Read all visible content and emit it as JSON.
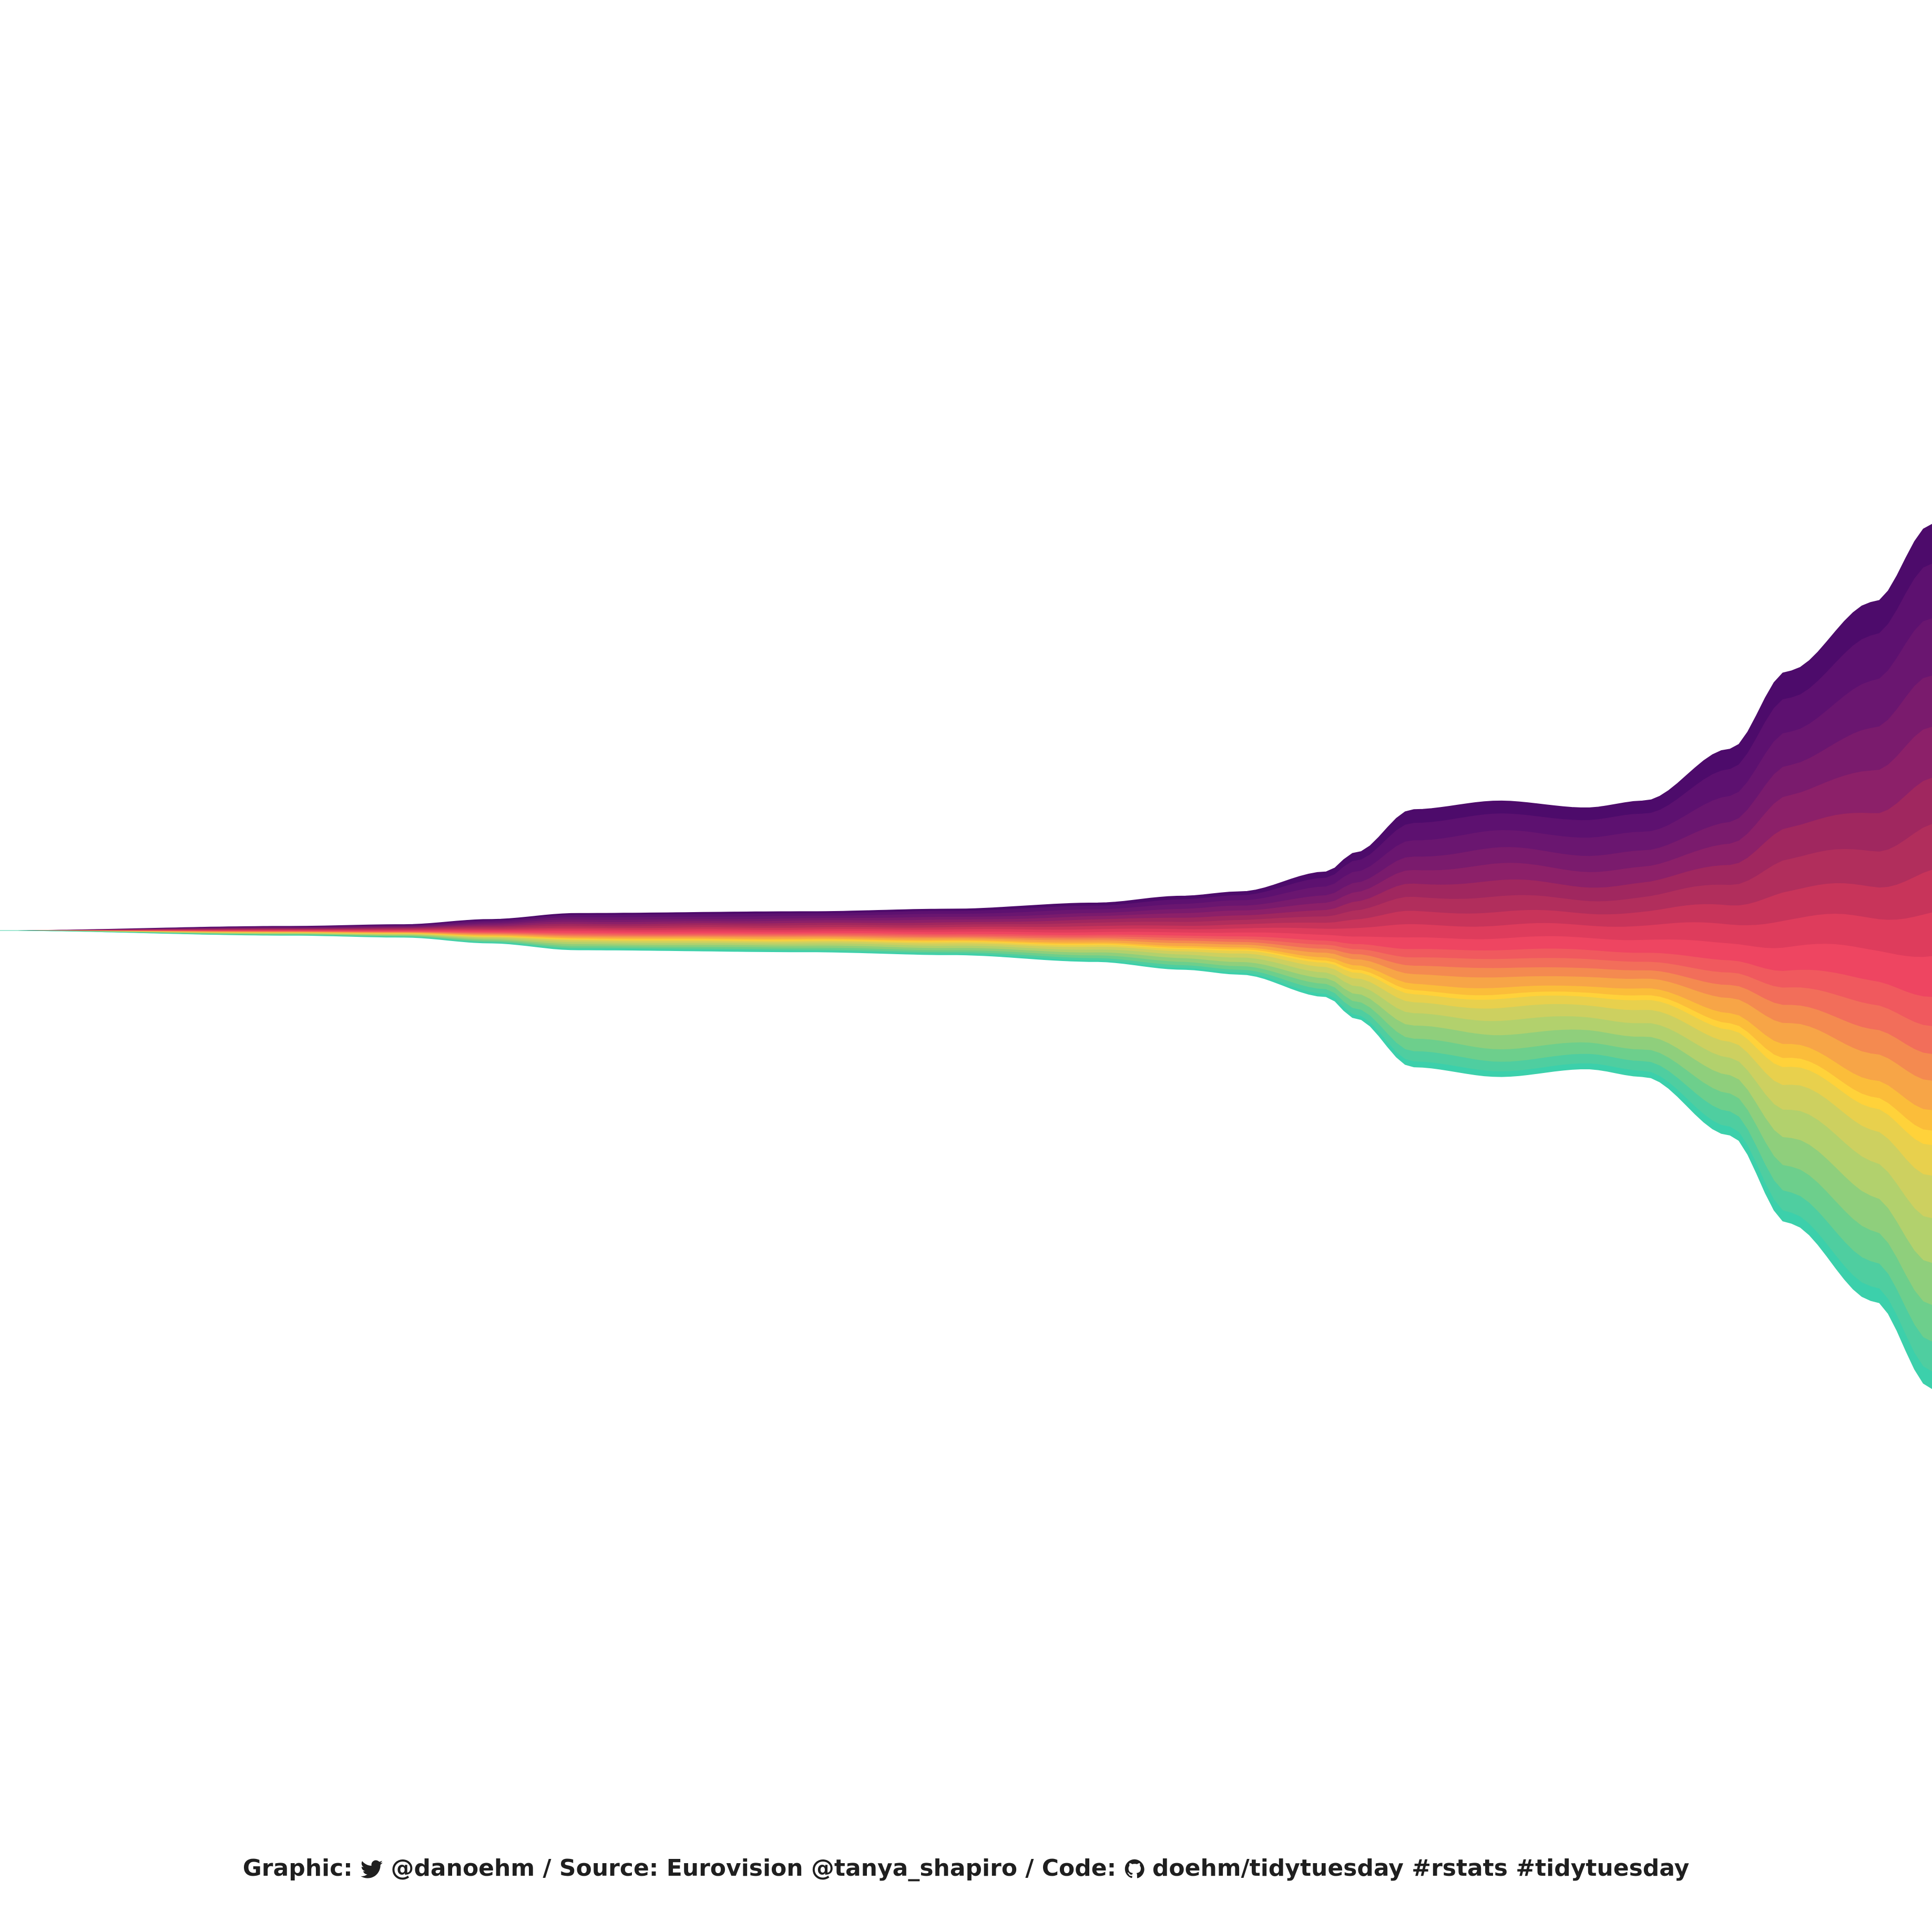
{
  "chart_data": {
    "type": "area",
    "subtype": "streamgraph",
    "title": "",
    "xlabel": "",
    "ylabel": "",
    "xlim": [
      0,
      67
    ],
    "grid": false,
    "legend": "none",
    "x_knots": [
      0,
      10,
      14,
      17,
      20,
      28,
      33,
      38,
      41,
      43,
      46,
      47,
      49,
      52,
      55,
      57,
      60,
      62,
      65,
      67
    ],
    "width_knots": [
      0,
      5,
      7,
      13,
      20,
      22,
      25,
      32,
      40,
      45,
      68,
      90,
      140,
      150,
      142,
      150,
      210,
      300,
      380,
      470
    ],
    "palette": [
      "#4d0b6b",
      "#5d1170",
      "#6a1670",
      "#7a1b6d",
      "#8c2069",
      "#a0275f",
      "#b12e5c",
      "#c8345a",
      "#de3c5c",
      "#ee4561",
      "#f0595e",
      "#f26e5a",
      "#f48a50",
      "#f7a547",
      "#fbbd3a",
      "#ffd23a",
      "#e8d04d",
      "#cdd060",
      "#b2d16d",
      "#8fcf7c",
      "#6dcf8c",
      "#4fcea0",
      "#3cd0ab"
    ],
    "weights": [
      1.2,
      1.6,
      1.6,
      1.4,
      1.4,
      1.3,
      1.3,
      1.2,
      1.2,
      1.1,
      0.8,
      0.8,
      0.8,
      0.9,
      0.6,
      0.4,
      0.8,
      1.1,
      1.2,
      1.2,
      1.1,
      0.9,
      0.5
    ]
  },
  "caption": {
    "graphic_label": "Graphic:",
    "twitter_icon": "twitter-bird-icon",
    "twitter_handle": "@danoehm",
    "source_text": "/ Source: Eurovision @tanya_shapiro / Code:",
    "github_icon": "github-octocat-icon",
    "code_text": "doehm/tidytuesday #rstats #tidytuesday"
  }
}
